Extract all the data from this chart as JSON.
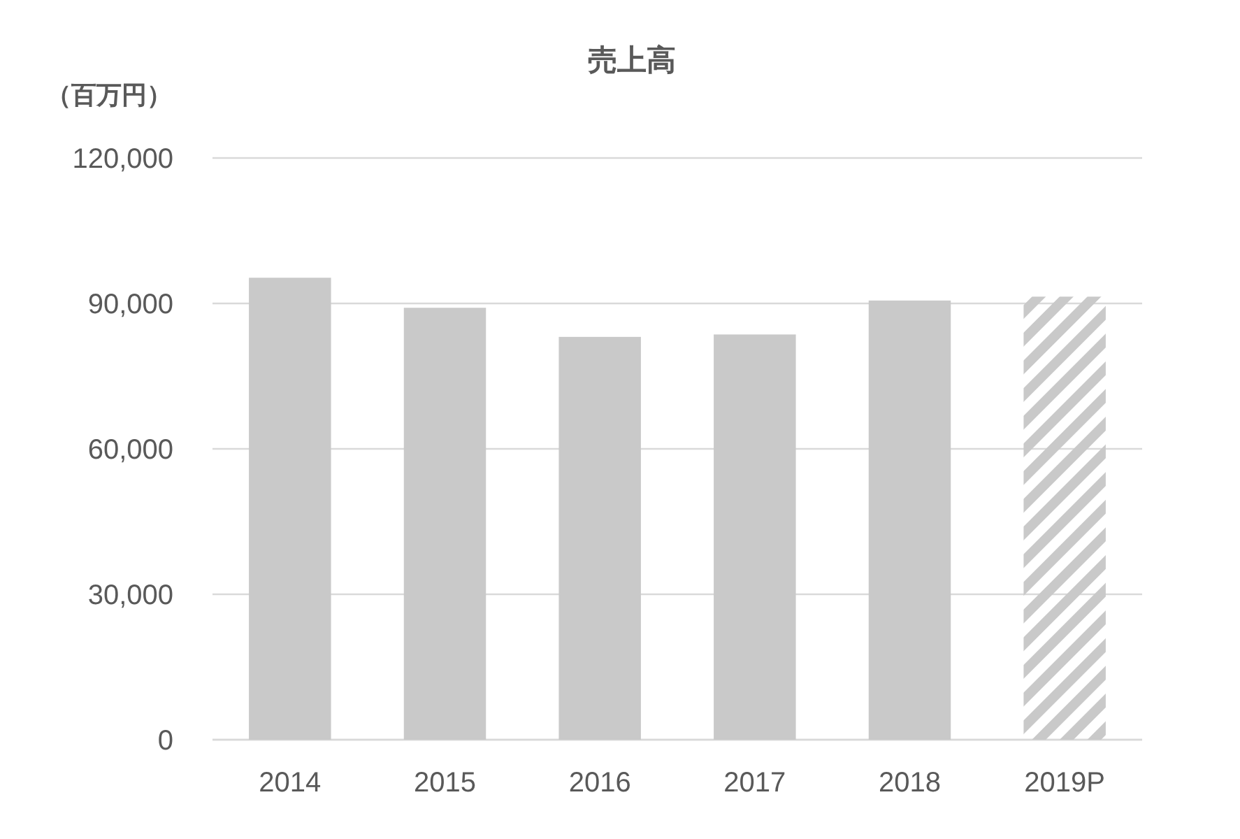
{
  "chart_data": {
    "type": "bar",
    "title": "売上高",
    "ylabel": "（百万円）",
    "categories": [
      "2014",
      "2015",
      "2016",
      "2017",
      "2018",
      "2019P"
    ],
    "series": [
      {
        "color": "#c9c9c9",
        "values": [
          95300,
          89100,
          83100,
          83600,
          90600,
          null
        ]
      },
      {
        "color": "#c9c9c9",
        "values": [
          null,
          null,
          null,
          null,
          null,
          91400
        ]
      }
    ],
    "ylim": [
      0,
      120000
    ],
    "yticks": [
      {
        "value": 0,
        "label": "0"
      },
      {
        "value": 30000,
        "label": "30,000"
      },
      {
        "value": 60000,
        "label": "60,000"
      },
      {
        "value": 90000,
        "label": "90,000"
      },
      {
        "value": 120000,
        "label": "120,000"
      }
    ],
    "grid": "y"
  }
}
